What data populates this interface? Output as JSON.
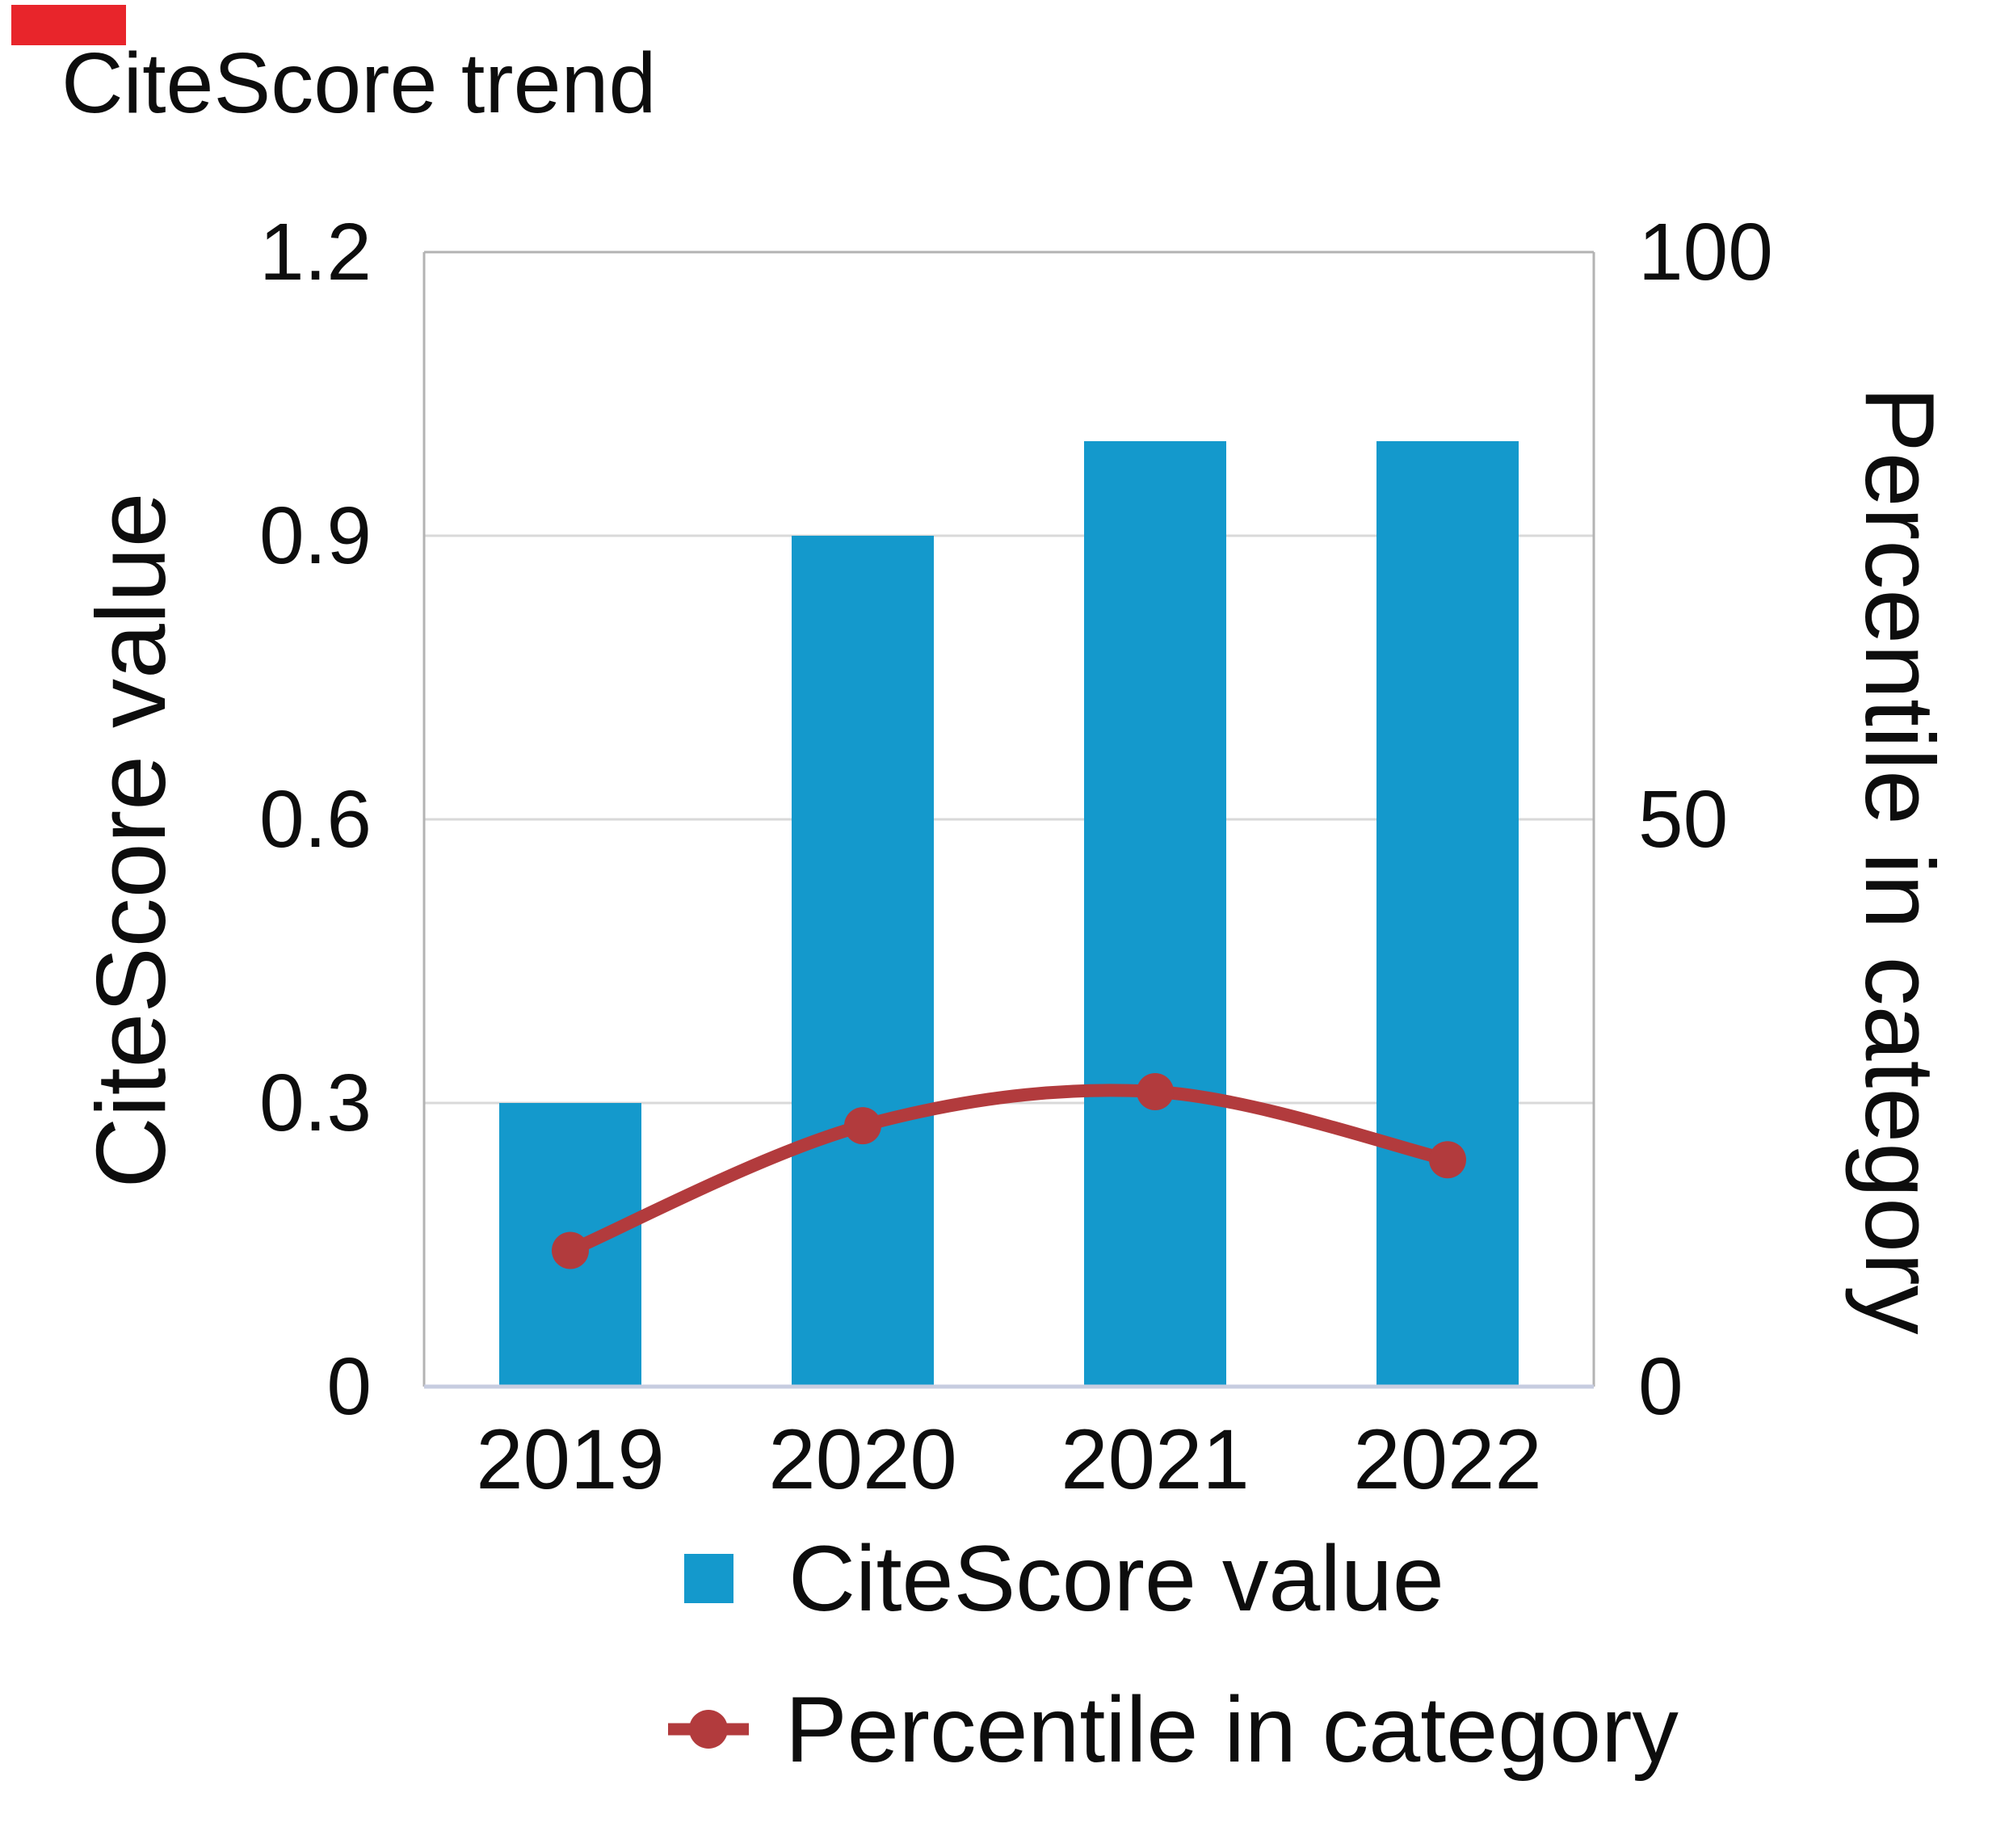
{
  "title": "CiteScore trend",
  "colors": {
    "bar_blue": "#1499cc",
    "line_red": "#b23b3d",
    "grid": "#d9d9d9",
    "frame": "#b3b3b3",
    "baseline": "#c7cde0",
    "text": "#0d0d0d",
    "corner_mark": "#e8252b"
  },
  "chart_data": {
    "type": "combo",
    "title": "CiteScore trend",
    "categories": [
      "2019",
      "2020",
      "2021",
      "2022"
    ],
    "series": [
      {
        "name": "CiteScore value",
        "type": "bar",
        "axis": "left",
        "values": [
          0.3,
          0.9,
          1.0,
          1.0
        ],
        "color": "#1499cc"
      },
      {
        "name": "Percentile in category",
        "type": "line",
        "axis": "right",
        "values": [
          12,
          23,
          26,
          20
        ],
        "color": "#b23b3d"
      }
    ],
    "left_axis": {
      "label": "CiteScore value",
      "range": [
        0,
        1.2
      ],
      "ticks": [
        1.2,
        0.9,
        0.6,
        0.3,
        0
      ],
      "tick_labels": [
        "1.2",
        "0.9",
        "0.6",
        "0.3",
        "0"
      ]
    },
    "right_axis": {
      "label": "Percentile in category",
      "range": [
        0,
        100
      ],
      "ticks": [
        100,
        50,
        0
      ],
      "tick_labels": [
        "100",
        "50",
        "0"
      ]
    },
    "grid": true,
    "legend_position": "bottom"
  }
}
